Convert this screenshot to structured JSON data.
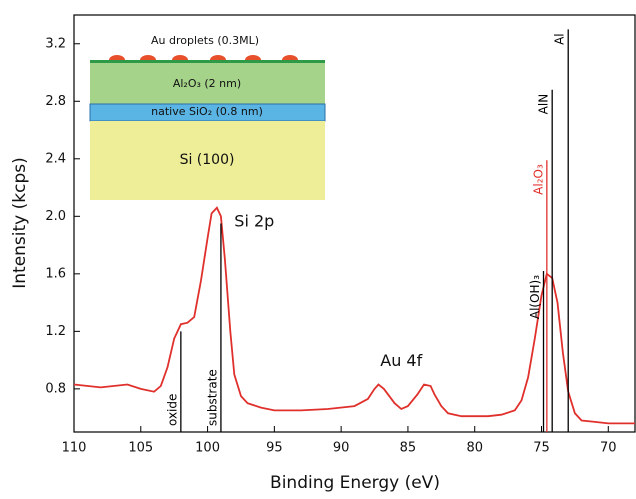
{
  "chart_data": {
    "type": "line",
    "x_label": "Binding Energy (eV)",
    "y_label": "Intensity (kcps)",
    "xlim": [
      110,
      68
    ],
    "ylim": [
      0.5,
      3.4
    ],
    "xticks": [
      110,
      105,
      100,
      95,
      90,
      85,
      80,
      75,
      70
    ],
    "yticks": [
      0.8,
      1.2,
      1.6,
      {
        "value": 2,
        "label": "2.0"
      },
      2.4,
      2.8,
      3.2
    ],
    "color": "#e0302c",
    "x": [
      110,
      108,
      106,
      105,
      104,
      103.5,
      103,
      102.5,
      102,
      101.5,
      101,
      100.5,
      100,
      99.7,
      99.3,
      99,
      98.7,
      98.3,
      98,
      97.5,
      97,
      96,
      95,
      93,
      91,
      89,
      88,
      87.5,
      87.2,
      86.8,
      86,
      85.5,
      85,
      84.3,
      83.8,
      83.3,
      83,
      82.5,
      82,
      81,
      80,
      79,
      78,
      77,
      76.5,
      76,
      75.5,
      75,
      74.6,
      74.2,
      73.8,
      73.4,
      73,
      72.5,
      72,
      71,
      70,
      69,
      68
    ],
    "values": [
      0.83,
      0.81,
      0.83,
      0.8,
      0.78,
      0.82,
      0.95,
      1.15,
      1.25,
      1.26,
      1.3,
      1.55,
      1.85,
      2.02,
      2.06,
      2.0,
      1.7,
      1.2,
      0.9,
      0.75,
      0.7,
      0.67,
      0.65,
      0.65,
      0.66,
      0.68,
      0.73,
      0.8,
      0.83,
      0.8,
      0.7,
      0.66,
      0.68,
      0.76,
      0.83,
      0.82,
      0.76,
      0.68,
      0.63,
      0.61,
      0.61,
      0.61,
      0.62,
      0.65,
      0.72,
      0.88,
      1.15,
      1.45,
      1.6,
      1.57,
      1.4,
      1.05,
      0.78,
      0.63,
      0.58,
      0.57,
      0.56,
      0.56,
      0.56
    ],
    "references": [
      {
        "label": "oxide",
        "x": 102,
        "top": 1.2,
        "color": "#000000"
      },
      {
        "label": "substrate",
        "x": 99,
        "top": 1.95,
        "color": "#000000"
      },
      {
        "label": "Al(OH)₃",
        "x": 74.85,
        "top": 1.62,
        "color": "#000000"
      },
      {
        "label": "Al₂O₃",
        "x": 74.6,
        "top": 2.39,
        "color": "#e0302c"
      },
      {
        "label": "AlN",
        "x": 74.2,
        "top": 2.88,
        "color": "#000000"
      },
      {
        "label": "Al",
        "x": 73,
        "top": 3.3,
        "color": "#000000"
      }
    ],
    "peak_labels": [
      {
        "text": "Si 2p",
        "x": 96.5,
        "y": 1.96
      },
      {
        "text": "Au 4f",
        "x": 85.5,
        "y": 0.99
      }
    ]
  },
  "inset": {
    "droplets": "Au droplets (0.3ML)",
    "layers": [
      "Al₂O₃ (2 nm)",
      "native SiO₂ (0.8 nm)",
      "Si (100)"
    ]
  }
}
